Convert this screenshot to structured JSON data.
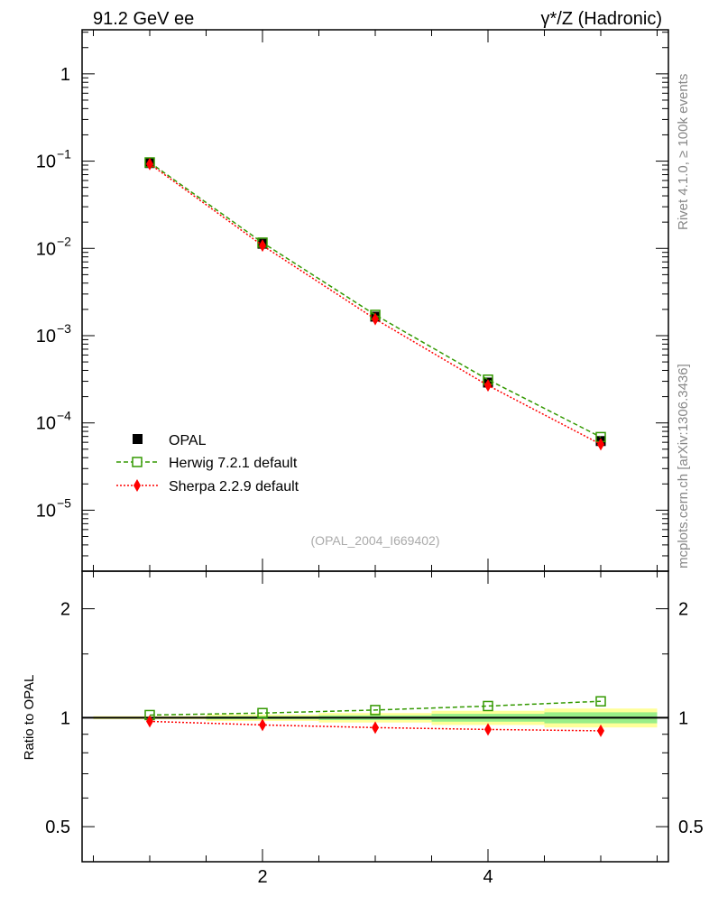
{
  "chart_data": [
    {
      "type": "line",
      "title_left": "91.2 GeV ee",
      "title_right": "γ*/Z (Hadronic)",
      "xlabel": "",
      "ylabel": "",
      "yscale": "log",
      "xlim": [
        0.4,
        5.6
      ],
      "ylim": [
        2e-06,
        3.2
      ],
      "x": [
        1,
        2,
        3,
        4,
        5
      ],
      "ytick_labels": [
        {
          "value": 1,
          "label": "1",
          "exp": ""
        },
        {
          "value": 0.1,
          "label": "10",
          "exp": "−1"
        },
        {
          "value": 0.01,
          "label": "10",
          "exp": "−2"
        },
        {
          "value": 0.001,
          "label": "10",
          "exp": "−3"
        },
        {
          "value": 0.0001,
          "label": "10",
          "exp": "−4"
        },
        {
          "value": 1e-05,
          "label": "10",
          "exp": "−5"
        }
      ],
      "series": [
        {
          "name": "OPAL",
          "values": [
            0.095,
            0.0113,
            0.00165,
            0.00029,
            6.2e-05
          ],
          "color": "#000000",
          "marker": "filled-square"
        },
        {
          "name": "Herwig 7.2.1 default",
          "values": [
            0.0966,
            0.01164,
            0.00173,
            0.000313,
            6.88e-05
          ],
          "color": "#339900",
          "marker": "open-square",
          "style": "dashed"
        },
        {
          "name": "Sherpa 2.2.9 default",
          "values": [
            0.0928,
            0.01079,
            0.00155,
            0.000269,
            5.69e-05
          ],
          "color": "#ff0000",
          "marker": "diamond",
          "style": "dotted"
        }
      ],
      "legend_position": "bottom-left",
      "annotation": "(OPAL_2004_I669402)",
      "side_label_1": "Rivet 4.1.0, ≥ 100k events",
      "side_label_2": "mcplots.cern.ch [arXiv:1306.3436]"
    },
    {
      "type": "line",
      "ylabel": "Ratio to OPAL",
      "yscale": "log",
      "xlim": [
        0.4,
        5.6
      ],
      "ylim": [
        0.4,
        2.54
      ],
      "x": [
        1,
        2,
        3,
        4,
        5
      ],
      "xtick_labels": [
        "2",
        "4"
      ],
      "ytick_labels": [
        "2",
        "1",
        "0.5"
      ],
      "band_total": [
        0.01,
        0.02,
        0.03,
        0.045,
        0.06
      ],
      "band_stat": [
        0.005,
        0.01,
        0.015,
        0.025,
        0.035
      ],
      "series": [
        {
          "name": "Herwig 7.2.1 default",
          "values": [
            1.017,
            1.03,
            1.05,
            1.077,
            1.11
          ]
        },
        {
          "name": "Sherpa 2.2.9 default",
          "values": [
            0.977,
            0.955,
            0.939,
            0.928,
            0.92
          ]
        }
      ]
    }
  ]
}
